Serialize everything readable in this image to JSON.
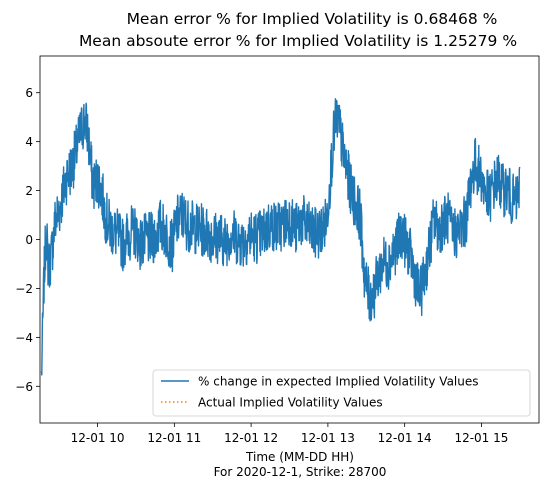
{
  "chart_data": {
    "type": "line",
    "title_lines": [
      "Mean error % for Implied Volatility is 0.68468 %",
      "Mean absoute error % for Implied Volatility is 1.25279 %"
    ],
    "xlabel_lines": [
      "Time (MM-DD HH)",
      "For 2020-12-1, Strike: 28700"
    ],
    "ylabel": "",
    "x_range_hours": [
      9.25,
      15.75
    ],
    "xlim_labels": [
      "12-01 09:15",
      "12-01 15:45"
    ],
    "ylim": [
      -7.5,
      7.5
    ],
    "x_ticks": [
      {
        "value": 10,
        "label": "12-01 10"
      },
      {
        "value": 11,
        "label": "12-01 11"
      },
      {
        "value": 12,
        "label": "12-01 12"
      },
      {
        "value": 13,
        "label": "12-01 13"
      },
      {
        "value": 14,
        "label": "12-01 14"
      },
      {
        "value": 15,
        "label": "12-01 15"
      }
    ],
    "y_ticks": [
      {
        "value": 6,
        "label": "6"
      },
      {
        "value": 4,
        "label": "4"
      },
      {
        "value": 2,
        "label": "2"
      },
      {
        "value": 0,
        "label": "0"
      },
      {
        "value": -2,
        "label": "−2"
      },
      {
        "value": -4,
        "label": "−4"
      },
      {
        "value": -6,
        "label": "−6"
      }
    ],
    "grid": false,
    "legend_position": "lower-right",
    "series": [
      {
        "name": "% change in expected Implied Volatility Values",
        "style": "solid",
        "color": "#1f77b4",
        "band_width": 1.1,
        "x": [
          9.27,
          9.3,
          9.33,
          9.36,
          9.4,
          9.45,
          9.5,
          9.55,
          9.6,
          9.66,
          9.72,
          9.78,
          9.83,
          9.87,
          9.9,
          9.93,
          9.96,
          10.0,
          10.05,
          10.1,
          10.16,
          10.22,
          10.28,
          10.33,
          10.38,
          10.44,
          10.5,
          10.56,
          10.62,
          10.68,
          10.75,
          10.82,
          10.9,
          10.97,
          11.03,
          11.1,
          11.17,
          11.25,
          11.33,
          11.42,
          11.5,
          11.58,
          11.66,
          11.74,
          11.82,
          11.9,
          11.98,
          12.06,
          12.15,
          12.24,
          12.33,
          12.42,
          12.5,
          12.58,
          12.66,
          12.74,
          12.82,
          12.9,
          12.98,
          13.03,
          13.08,
          13.12,
          13.16,
          13.2,
          13.25,
          13.3,
          13.36,
          13.42,
          13.48,
          13.54,
          13.6,
          13.66,
          13.72,
          13.78,
          13.84,
          13.9,
          13.96,
          14.02,
          14.08,
          14.14,
          14.2,
          14.26,
          14.32,
          14.38,
          14.44,
          14.5,
          14.56,
          14.62,
          14.68,
          14.74,
          14.8,
          14.86,
          14.92,
          14.98,
          15.04,
          15.1,
          15.16,
          15.22,
          15.28,
          15.34,
          15.4,
          15.45,
          15.5
        ],
        "values": [
          -5.6,
          -1.8,
          0.3,
          -1.2,
          -0.6,
          0.8,
          1.2,
          1.9,
          2.6,
          2.9,
          3.6,
          4.4,
          4.9,
          4.4,
          3.5,
          2.5,
          2.2,
          2.5,
          2.0,
          1.0,
          0.5,
          0.3,
          0.1,
          -0.2,
          0.1,
          0.3,
          0.3,
          -0.2,
          0.0,
          0.0,
          0.1,
          0.6,
          0.2,
          -0.3,
          0.7,
          1.0,
          0.6,
          0.5,
          0.4,
          0.3,
          0.1,
          0.1,
          -0.1,
          0.3,
          0.0,
          -0.1,
          0.2,
          0.1,
          0.2,
          0.6,
          0.5,
          0.6,
          0.9,
          0.4,
          0.8,
          0.5,
          0.2,
          0.3,
          0.7,
          2.5,
          4.4,
          5.0,
          4.4,
          3.5,
          2.8,
          2.0,
          1.5,
          1.0,
          -1.6,
          -2.4,
          -2.2,
          -1.4,
          -0.9,
          -1.0,
          -0.6,
          -0.2,
          0.3,
          -0.2,
          -0.7,
          -1.6,
          -2.3,
          -1.5,
          -0.4,
          0.8,
          0.4,
          0.7,
          0.9,
          0.3,
          0.3,
          0.5,
          0.8,
          2.3,
          3.1,
          2.7,
          2.1,
          1.6,
          2.2,
          2.5,
          2.0,
          2.1,
          1.6,
          1.5,
          2.2
        ]
      },
      {
        "name": "Actual Implied Volatility Values",
        "style": "dotted",
        "color": "#ff7f0e",
        "values": []
      }
    ]
  }
}
